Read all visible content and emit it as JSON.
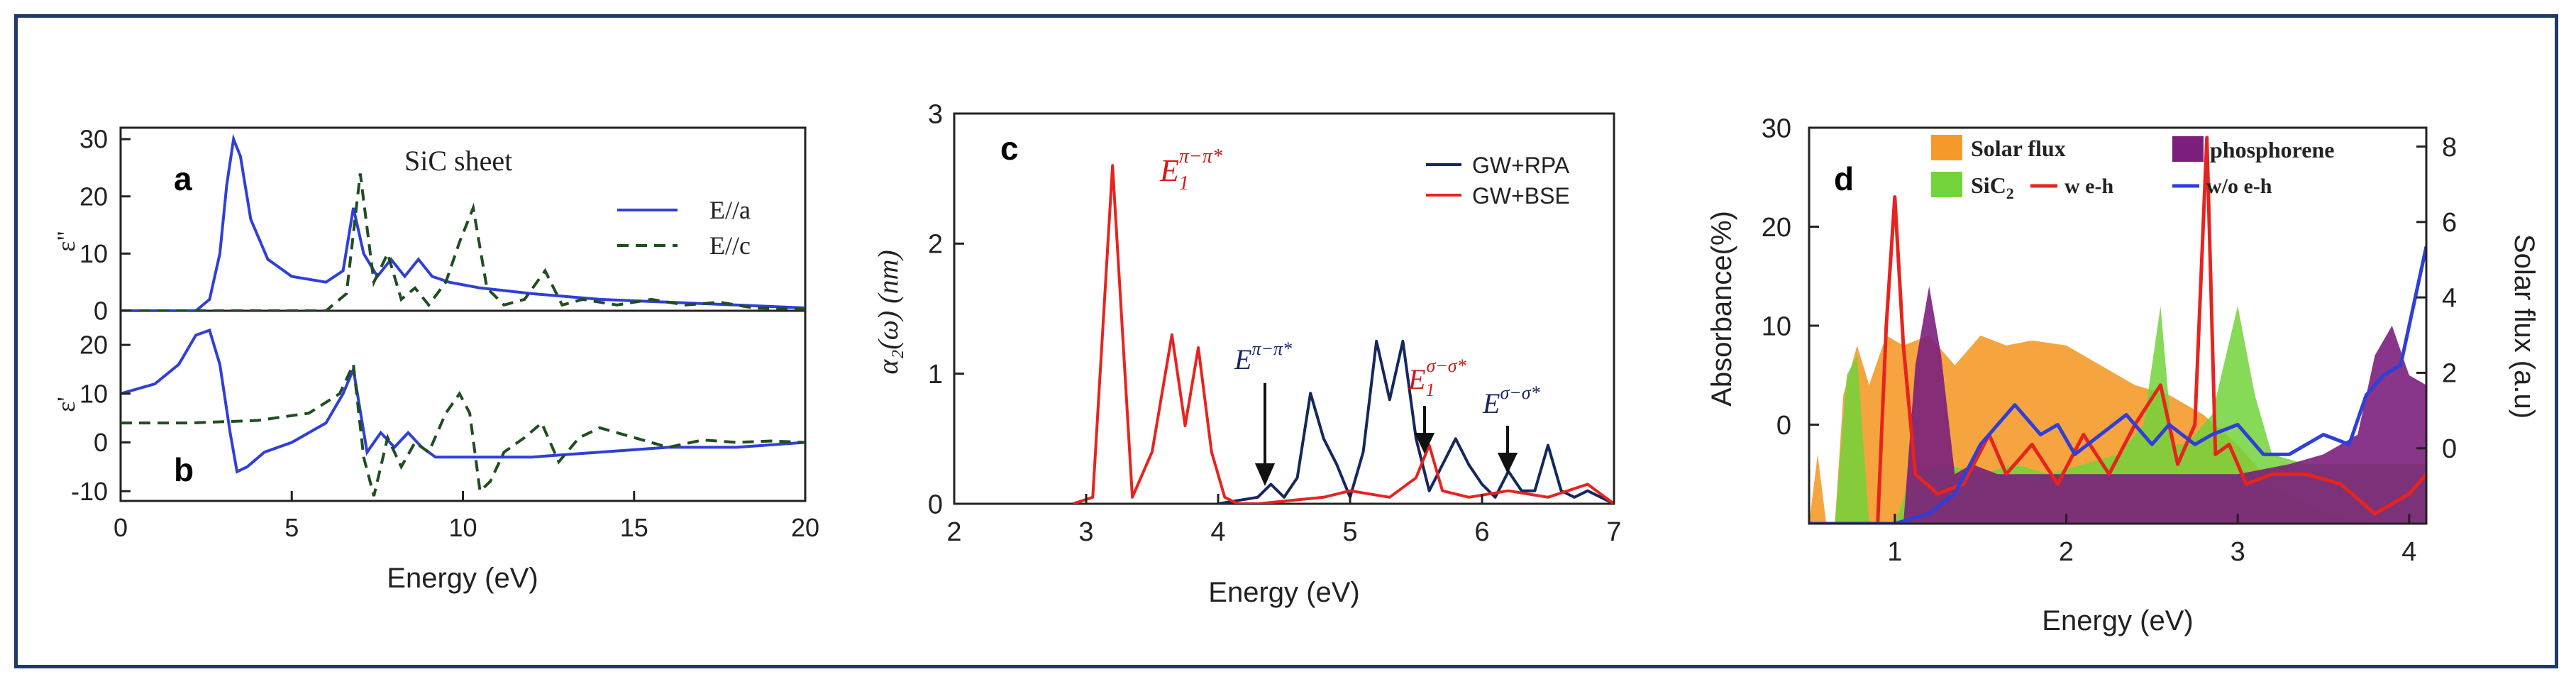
{
  "colors": {
    "frame": "#1f3a6a",
    "blue": "#2f3fd8",
    "darkgreen": "#1f4e1f",
    "navy": "#15285e",
    "red": "#e6241f",
    "orange": "#f59a2a",
    "lightgreen": "#72d43a",
    "purple": "#7b1f7d"
  },
  "chart_data": [
    {
      "type": "line",
      "panels": [
        "a",
        "b"
      ],
      "title": "SiC sheet",
      "xlabel": "Energy (eV)",
      "xlim": [
        0,
        20
      ],
      "xticks": [
        "0",
        "5",
        "10",
        "15",
        "20"
      ],
      "panel_a": {
        "label": "a",
        "ylabel": "ε\"",
        "ylim": [
          0,
          32
        ],
        "yticks": [
          "0",
          "10",
          "20",
          "30"
        ],
        "series": [
          {
            "name": "E//a",
            "style": "solid",
            "x": [
              0,
              2.2,
              2.6,
              2.9,
              3.1,
              3.3,
              3.5,
              3.8,
              4.3,
              5,
              6,
              6.5,
              6.8,
              7.1,
              7.5,
              7.9,
              8.3,
              8.7,
              9.1,
              9.6,
              10.5,
              12,
              14,
              16,
              18,
              20
            ],
            "y": [
              0,
              0,
              2,
              10,
              22,
              30,
              27,
              16,
              9,
              6,
              5,
              7,
              18,
              10,
              6,
              9,
              6,
              9,
              6,
              5,
              4,
              3,
              2,
              1.5,
              1,
              0.5
            ]
          },
          {
            "name": "E//c",
            "style": "dashed",
            "x": [
              0,
              6,
              6.6,
              7.0,
              7.4,
              7.8,
              8.2,
              8.6,
              9.0,
              9.5,
              9.9,
              10.3,
              10.7,
              11.2,
              11.8,
              12.4,
              12.9,
              13.5,
              14.5,
              15.5,
              16.5,
              17.5,
              18.5,
              20
            ],
            "y": [
              0,
              0,
              3,
              24,
              5,
              10,
              2,
              4,
              1,
              5,
              12,
              18,
              4,
              1,
              2,
              7,
              1,
              2,
              1,
              2,
              1,
              1.5,
              0.5,
              0.3
            ]
          }
        ]
      },
      "panel_b": {
        "label": "b",
        "ylabel": "ε'",
        "ylim": [
          -12,
          27
        ],
        "yticks": [
          "-10",
          "0",
          "10",
          "20"
        ],
        "series": [
          {
            "name": "E//a",
            "style": "solid",
            "x": [
              0,
              1,
              1.7,
              2.2,
              2.6,
              2.9,
              3.2,
              3.4,
              3.7,
              4.2,
              5,
              6,
              6.5,
              6.8,
              7.2,
              7.6,
              8.0,
              8.4,
              8.8,
              9.2,
              10,
              12,
              14,
              16,
              18,
              20
            ],
            "y": [
              10,
              12,
              16,
              22,
              23,
              16,
              2,
              -6,
              -5,
              -2,
              0,
              4,
              10,
              15,
              -2,
              2,
              -1,
              2,
              -1,
              -3,
              -3,
              -3,
              -2,
              -1,
              -1,
              0
            ]
          },
          {
            "name": "E//c",
            "style": "dashed",
            "x": [
              0,
              2,
              4,
              5.5,
              6.4,
              6.8,
              7.1,
              7.4,
              7.8,
              8.2,
              8.6,
              9.0,
              9.5,
              9.9,
              10.2,
              10.5,
              10.8,
              11.2,
              11.8,
              12.3,
              12.8,
              13.4,
              14,
              15,
              16,
              17,
              18,
              19,
              20
            ],
            "y": [
              4,
              4,
              4.5,
              6,
              10,
              16,
              -3,
              -11,
              1,
              -5,
              0,
              -2,
              6,
              10,
              6,
              -10,
              -8,
              -2,
              1,
              4,
              -4,
              1,
              3,
              1,
              -1,
              0.5,
              0,
              0.3,
              0
            ]
          }
        ]
      }
    },
    {
      "type": "line",
      "label": "c",
      "xlabel": "Energy (eV)",
      "ylabel": "α₂(ω) (nm)",
      "xlim": [
        2,
        7
      ],
      "ylim": [
        0,
        3
      ],
      "xticks": [
        "2",
        "3",
        "4",
        "5",
        "6",
        "7"
      ],
      "yticks": [
        "0",
        "1",
        "2",
        "3"
      ],
      "series": [
        {
          "name": "GW+RPA",
          "x": [
            4.0,
            4.3,
            4.4,
            4.5,
            4.6,
            4.7,
            4.8,
            4.9,
            5.0,
            5.1,
            5.2,
            5.3,
            5.4,
            5.5,
            5.6,
            5.7,
            5.8,
            5.9,
            6.0,
            6.1,
            6.2,
            6.3,
            6.4,
            6.5,
            6.6,
            6.7,
            6.8,
            6.9,
            7.0
          ],
          "y": [
            0,
            0.05,
            0.15,
            0.05,
            0.2,
            0.85,
            0.5,
            0.3,
            0.05,
            0.4,
            1.25,
            0.8,
            1.25,
            0.5,
            0.1,
            0.3,
            0.5,
            0.3,
            0.15,
            0.05,
            0.25,
            0.1,
            0.1,
            0.45,
            0.1,
            0.05,
            0.1,
            0.05,
            0
          ]
        },
        {
          "name": "GW+BSE",
          "x": [
            2.9,
            3.05,
            3.2,
            3.35,
            3.5,
            3.65,
            3.75,
            3.85,
            3.95,
            4.05,
            4.15,
            4.3,
            4.5,
            4.8,
            5.0,
            5.3,
            5.5,
            5.6,
            5.7,
            5.9,
            6.2,
            6.5,
            6.8,
            7.0
          ],
          "y": [
            0,
            0.05,
            2.6,
            0.05,
            0.4,
            1.3,
            0.6,
            1.2,
            0.4,
            0.05,
            0,
            0,
            0.02,
            0.05,
            0.1,
            0.05,
            0.2,
            0.45,
            0.1,
            0.05,
            0.1,
            0.05,
            0.15,
            0
          ]
        }
      ],
      "annotations": [
        "E₁^{π-π*}",
        "E^{π-π*}",
        "E₁^{σ-σ*}",
        "E^{σ-σ*}"
      ],
      "annotation_parts": {
        "e1_pi": {
          "base": "E",
          "sub": "1",
          "sup": "π−π*"
        },
        "e_pi": {
          "base": "E",
          "sup": "π−π*"
        },
        "e1_sigma": {
          "base": "E",
          "sub": "1",
          "sup": "σ−σ*"
        },
        "e_sigma": {
          "base": "E",
          "sup": "σ−σ*"
        }
      }
    },
    {
      "type": "area",
      "label": "d",
      "xlabel": "Energy (eV)",
      "ylabel": "Absorbance(%)",
      "y2label": "Solar flux (a.u)",
      "xlim": [
        0.5,
        4.1
      ],
      "ylim": [
        -10,
        30
      ],
      "y2lim": [
        -2,
        8.5
      ],
      "xticks": [
        "1",
        "2",
        "3",
        "4"
      ],
      "yticks": [
        "0",
        "10",
        "20",
        "30"
      ],
      "y2ticks": [
        "0",
        "2",
        "4",
        "6",
        "8"
      ],
      "legend": [
        "Solar flux",
        "phosphorene",
        "SiC₂",
        "w e-h",
        "w/o e-h"
      ],
      "legend_parts": {
        "sic2_base": "SiC",
        "sic2_sub": "2"
      },
      "series": [
        {
          "name": "Solar flux",
          "kind": "area",
          "x": [
            0.5,
            0.55,
            0.6,
            0.65,
            0.7,
            0.78,
            0.85,
            0.95,
            1.05,
            1.2,
            1.35,
            1.5,
            1.65,
            1.8,
            2.0,
            2.2,
            2.4,
            2.6,
            2.8,
            3.0,
            3.2,
            3.5,
            3.8,
            4.1
          ],
          "y": [
            -10,
            -3,
            -10,
            -10,
            3,
            8,
            4,
            9,
            8,
            9,
            6,
            9,
            8,
            8.5,
            8,
            6,
            4,
            3,
            1,
            -2,
            -6,
            -9,
            -10,
            -10
          ]
        },
        {
          "name": "SiC₂",
          "kind": "area",
          "x": [
            0.5,
            0.65,
            0.72,
            0.78,
            0.85,
            0.9,
            1.0,
            1.1,
            1.3,
            1.5,
            1.7,
            1.9,
            2.1,
            2.3,
            2.45,
            2.55,
            2.62,
            2.7,
            2.85,
            3.0,
            3.1,
            3.2,
            3.4,
            3.7,
            3.9,
            4.1
          ],
          "y": [
            -10,
            -10,
            5,
            7,
            -10,
            -10,
            -10,
            -5,
            -4,
            -5,
            -4,
            -5,
            -4,
            -3,
            0,
            12,
            -2,
            -2,
            1,
            12,
            3,
            -3,
            -4,
            -4,
            -4,
            -4
          ]
        },
        {
          "name": "phosphorene",
          "kind": "area",
          "x": [
            0.5,
            1.05,
            1.12,
            1.2,
            1.27,
            1.35,
            1.45,
            1.6,
            2.0,
            2.6,
            3.0,
            3.3,
            3.5,
            3.7,
            3.8,
            3.9,
            4.0,
            4.1
          ],
          "y": [
            -10,
            -10,
            6,
            14,
            7,
            -5,
            -4,
            -5,
            -5,
            -5,
            -5,
            -4,
            -3,
            -1,
            7,
            10,
            5,
            4
          ]
        },
        {
          "name": "w e-h",
          "kind": "line",
          "x": [
            0.5,
            0.9,
            0.95,
            1.0,
            1.05,
            1.12,
            1.25,
            1.4,
            1.55,
            1.65,
            1.8,
            1.95,
            2.1,
            2.25,
            2.4,
            2.55,
            2.65,
            2.75,
            2.82,
            2.87,
            2.95,
            3.05,
            3.2,
            3.4,
            3.6,
            3.8,
            4.0,
            4.1
          ],
          "y": [
            -10,
            -10,
            10,
            23,
            8,
            -5,
            -7,
            -6,
            -1,
            -5,
            -2,
            -6,
            -1,
            -5,
            0,
            4,
            -4,
            0,
            29,
            -3,
            -2,
            -6,
            -5,
            -5,
            -6,
            -9,
            -7,
            -5
          ]
        },
        {
          "name": "w/o e-h",
          "kind": "line",
          "x": [
            0.5,
            1.0,
            1.2,
            1.35,
            1.5,
            1.6,
            1.7,
            1.85,
            1.95,
            2.05,
            2.2,
            2.35,
            2.5,
            2.6,
            2.75,
            2.85,
            3.0,
            3.15,
            3.3,
            3.5,
            3.65,
            3.75,
            3.85,
            3.95,
            4.05,
            4.1
          ],
          "y": [
            -10,
            -10,
            -9,
            -7,
            -2,
            0,
            2,
            -1,
            0,
            -3,
            -1,
            1,
            -2,
            0,
            -2,
            -1,
            0,
            -3,
            -3,
            -1,
            -2,
            3,
            5,
            6,
            14,
            18
          ]
        }
      ]
    }
  ]
}
